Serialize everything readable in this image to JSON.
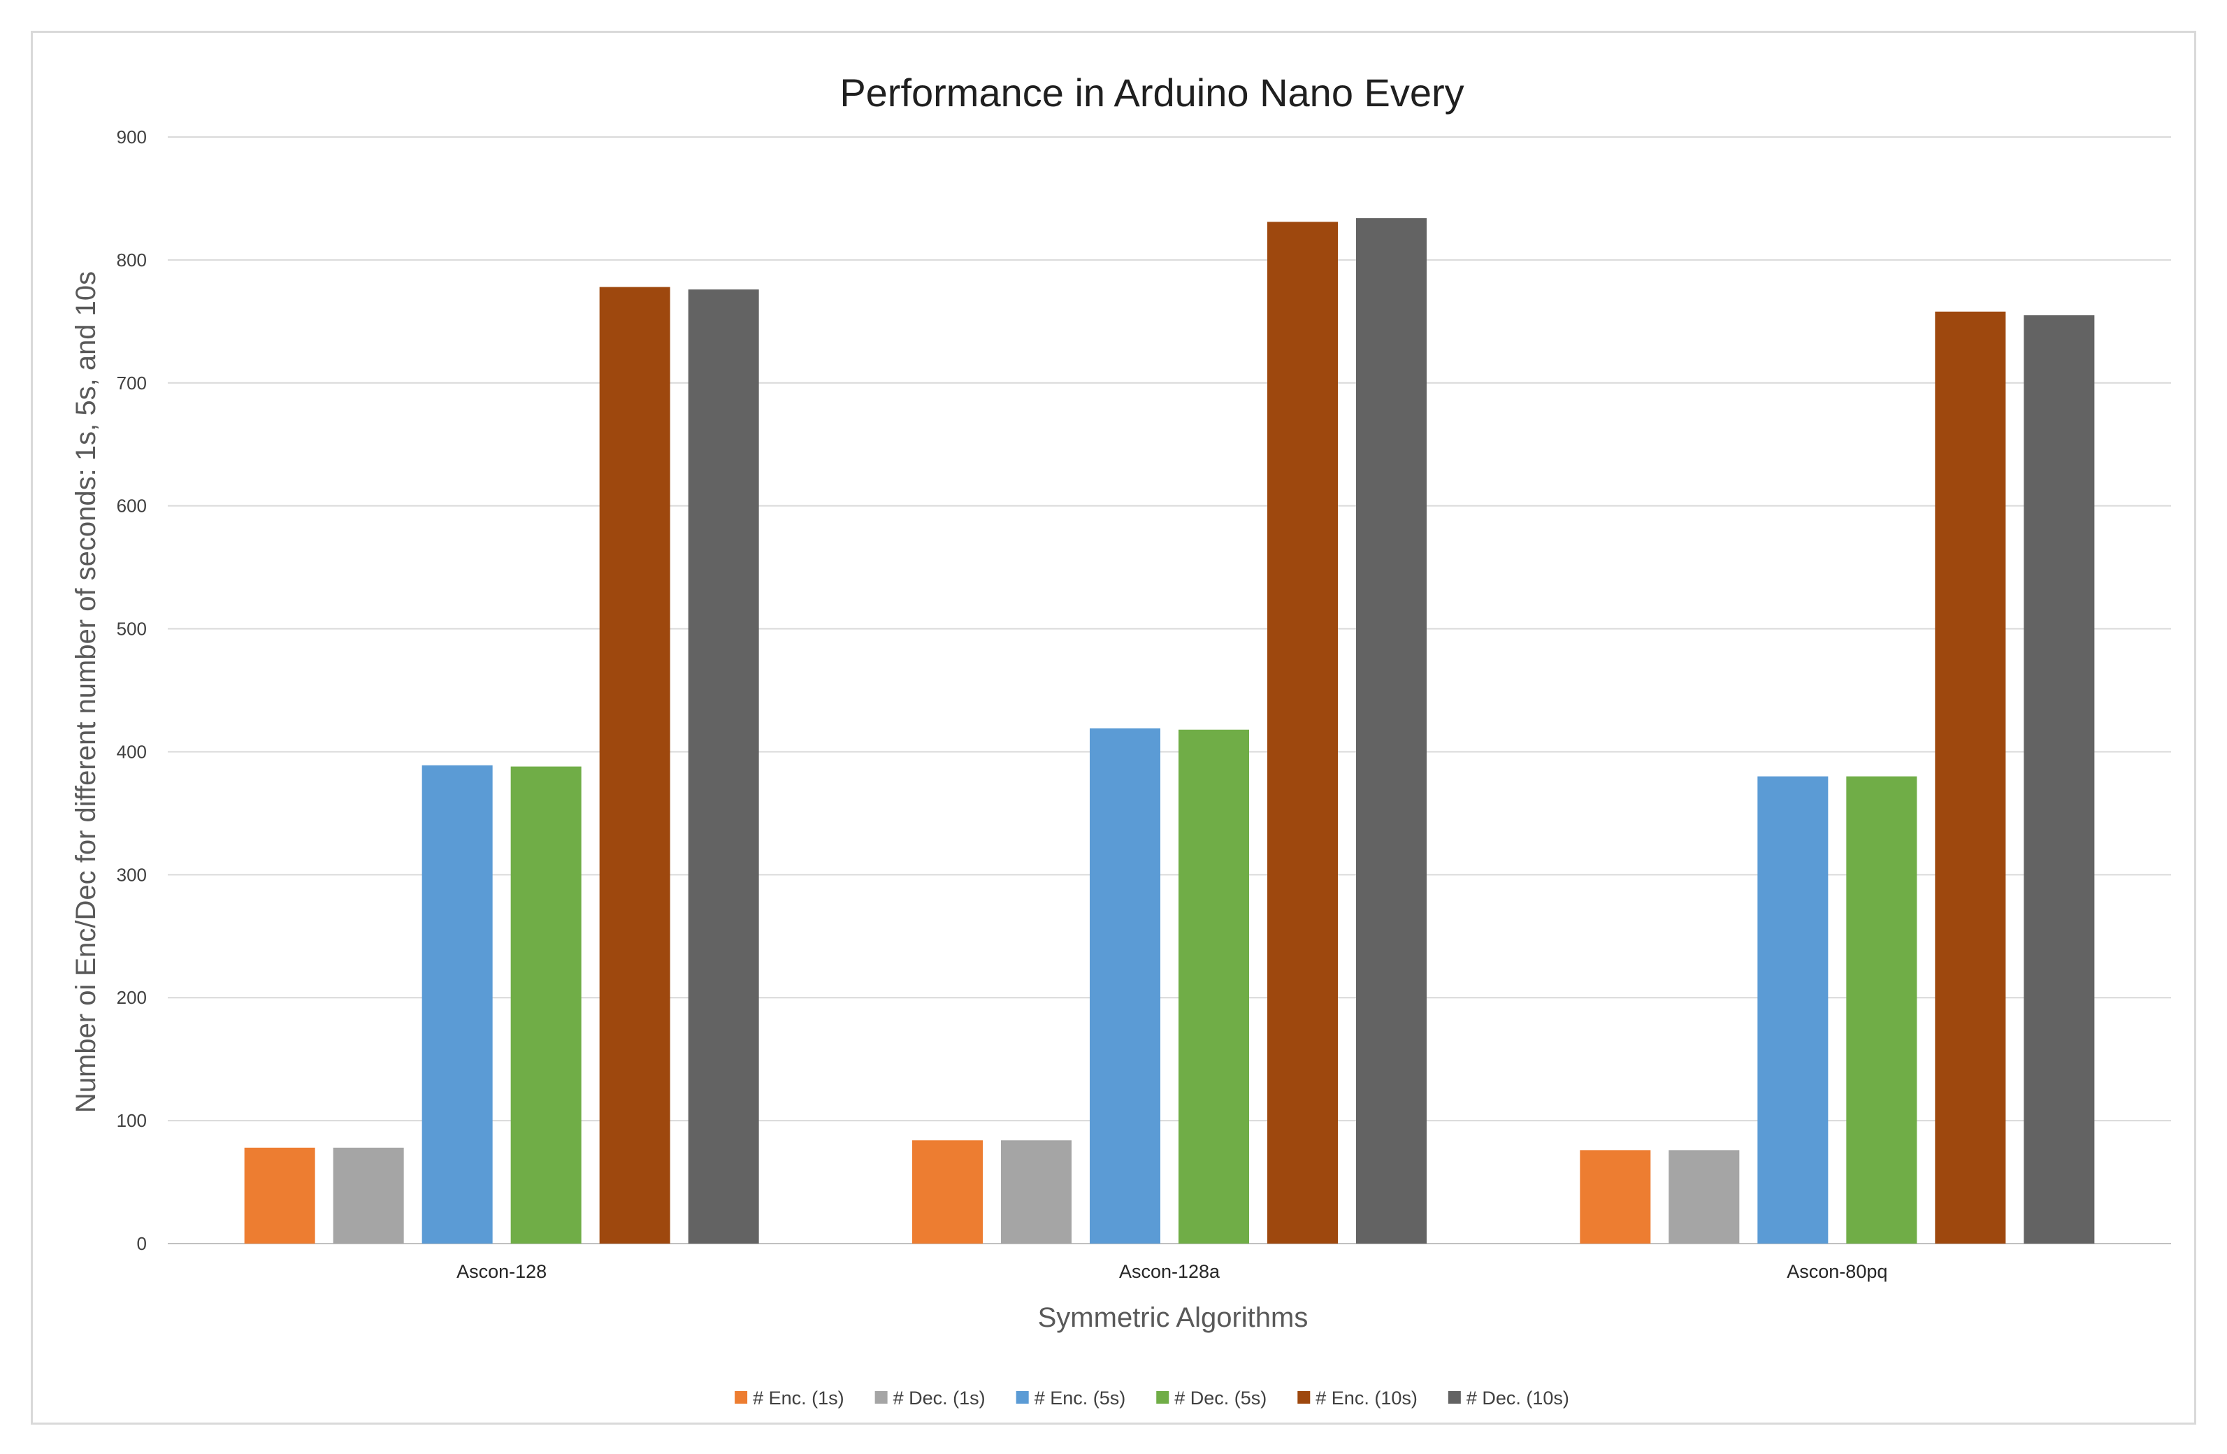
{
  "chart_data": {
    "type": "bar",
    "title": "Performance in Arduino Nano Every",
    "xlabel": "Symmetric Algorithms",
    "ylabel": "Number oi Enc/Dec  for different number of seconds: 1s, 5s, and 10s",
    "ylim": [
      0,
      900
    ],
    "yticks": [
      0,
      100,
      200,
      300,
      400,
      500,
      600,
      700,
      800,
      900
    ],
    "grid": true,
    "legend_position": "bottom",
    "categories": [
      "Ascon-128",
      "Ascon-128a",
      "Ascon-80pq"
    ],
    "series": [
      {
        "name": "# Enc. (1s)",
        "color": "#ed7d31",
        "values": [
          78,
          84,
          76
        ]
      },
      {
        "name": "# Dec. (1s)",
        "color": "#a5a5a5",
        "values": [
          78,
          84,
          76
        ]
      },
      {
        "name": "# Enc. (5s)",
        "color": "#5b9bd5",
        "values": [
          389,
          419,
          380
        ]
      },
      {
        "name": "# Dec. (5s)",
        "color": "#70ad47",
        "values": [
          388,
          418,
          380
        ]
      },
      {
        "name": "# Enc. (10s)",
        "color": "#9e480e",
        "values": [
          778,
          831,
          758
        ]
      },
      {
        "name": "# Dec. (10s)",
        "color": "#636363",
        "values": [
          776,
          834,
          755
        ]
      }
    ]
  }
}
